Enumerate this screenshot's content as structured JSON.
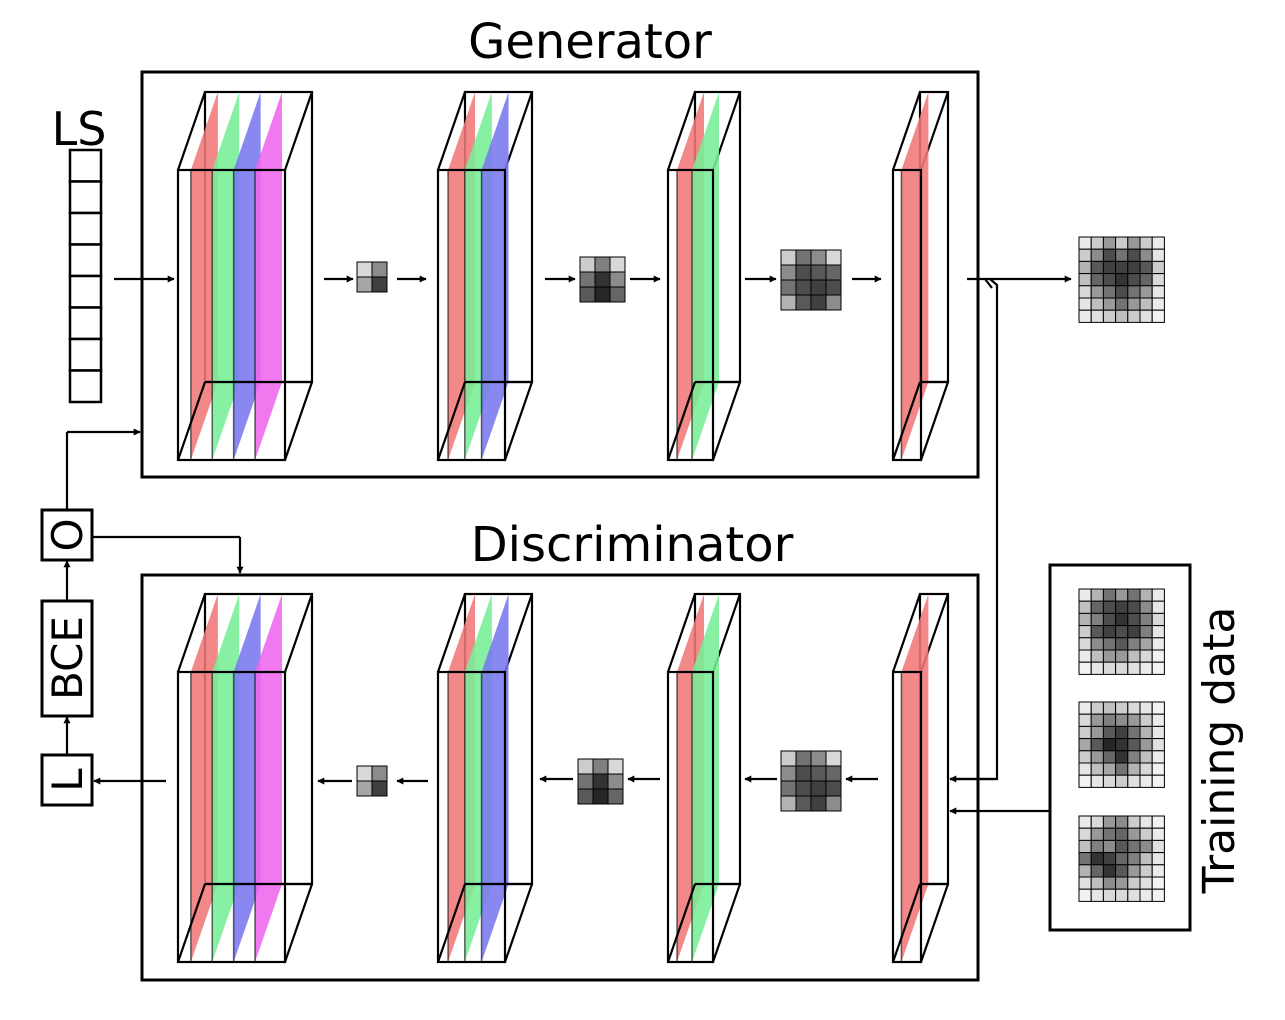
{
  "generator": {
    "title": "Generator"
  },
  "discriminator": {
    "title": "Discriminator"
  },
  "latent": {
    "label": "LS",
    "cells": 8
  },
  "loss_blocks": {
    "optimizer": "O",
    "bce": "BCE",
    "loss": "L"
  },
  "training": {
    "label": "Training data"
  },
  "layer_colors": [
    "#f07878",
    "#78ee96",
    "#7878ee",
    "#ee66ee"
  ],
  "feature_maps": {
    "grid2": [
      [
        0.85,
        0.55
      ],
      [
        0.65,
        0.25
      ]
    ],
    "grid3": [
      [
        0.8,
        0.5,
        0.85
      ],
      [
        0.45,
        0.2,
        0.55
      ],
      [
        0.35,
        0.15,
        0.4
      ]
    ],
    "grid4": [
      [
        0.8,
        0.45,
        0.55,
        0.85
      ],
      [
        0.55,
        0.3,
        0.35,
        0.4
      ],
      [
        0.45,
        0.3,
        0.25,
        0.3
      ],
      [
        0.7,
        0.35,
        0.25,
        0.55
      ]
    ],
    "output": [
      [
        0.92,
        0.8,
        0.6,
        0.8,
        0.6,
        0.8,
        0.92
      ],
      [
        0.8,
        0.55,
        0.3,
        0.45,
        0.3,
        0.55,
        0.9
      ],
      [
        0.7,
        0.35,
        0.25,
        0.25,
        0.25,
        0.35,
        0.8
      ],
      [
        0.75,
        0.4,
        0.3,
        0.2,
        0.3,
        0.4,
        0.85
      ],
      [
        0.85,
        0.6,
        0.45,
        0.3,
        0.45,
        0.6,
        0.9
      ],
      [
        0.9,
        0.75,
        0.6,
        0.45,
        0.6,
        0.75,
        0.92
      ],
      [
        0.92,
        0.88,
        0.8,
        0.75,
        0.8,
        0.88,
        0.95
      ]
    ],
    "sample1": [
      [
        0.92,
        0.7,
        0.45,
        0.6,
        0.45,
        0.7,
        0.92
      ],
      [
        0.75,
        0.4,
        0.3,
        0.25,
        0.3,
        0.55,
        0.9
      ],
      [
        0.7,
        0.5,
        0.3,
        0.2,
        0.3,
        0.5,
        0.85
      ],
      [
        0.8,
        0.35,
        0.25,
        0.3,
        0.25,
        0.5,
        0.9
      ],
      [
        0.85,
        0.55,
        0.45,
        0.35,
        0.5,
        0.65,
        0.92
      ],
      [
        0.92,
        0.75,
        0.6,
        0.6,
        0.75,
        0.85,
        0.95
      ],
      [
        0.95,
        0.9,
        0.85,
        0.85,
        0.88,
        0.92,
        0.95
      ]
    ],
    "sample2": [
      [
        0.92,
        0.8,
        0.75,
        0.8,
        0.85,
        0.9,
        0.95
      ],
      [
        0.85,
        0.6,
        0.5,
        0.55,
        0.6,
        0.8,
        0.92
      ],
      [
        0.8,
        0.6,
        0.35,
        0.25,
        0.45,
        0.7,
        0.9
      ],
      [
        0.65,
        0.35,
        0.15,
        0.2,
        0.35,
        0.6,
        0.88
      ],
      [
        0.8,
        0.6,
        0.4,
        0.2,
        0.5,
        0.75,
        0.92
      ],
      [
        0.9,
        0.75,
        0.65,
        0.45,
        0.7,
        0.85,
        0.95
      ],
      [
        0.95,
        0.9,
        0.85,
        0.8,
        0.88,
        0.92,
        0.95
      ]
    ],
    "sample3": [
      [
        0.92,
        0.85,
        0.6,
        0.55,
        0.8,
        0.9,
        0.95
      ],
      [
        0.85,
        0.6,
        0.45,
        0.4,
        0.6,
        0.8,
        0.92
      ],
      [
        0.75,
        0.5,
        0.55,
        0.35,
        0.45,
        0.55,
        0.88
      ],
      [
        0.45,
        0.2,
        0.25,
        0.4,
        0.5,
        0.75,
        0.9
      ],
      [
        0.7,
        0.4,
        0.2,
        0.35,
        0.6,
        0.8,
        0.92
      ],
      [
        0.88,
        0.75,
        0.55,
        0.6,
        0.8,
        0.88,
        0.95
      ],
      [
        0.95,
        0.9,
        0.85,
        0.85,
        0.88,
        0.92,
        0.95
      ]
    ]
  }
}
